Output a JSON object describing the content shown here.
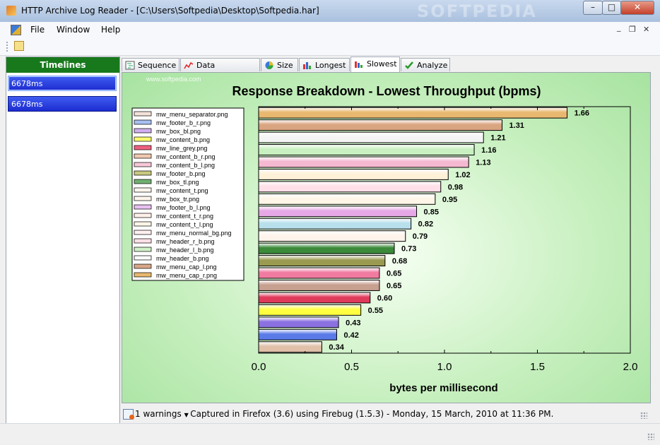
{
  "window": {
    "title": "HTTP Archive Log Reader - [C:\\Users\\Softpedia\\Desktop\\Softpedia.har]",
    "watermark": "SOFTPEDIA",
    "controls": {
      "minimize": "–",
      "maximize": "□",
      "close": "✕"
    }
  },
  "menu": {
    "file": "File",
    "window": "Window",
    "help": "Help",
    "mdi_minimize": "_",
    "mdi_restore": "❐",
    "mdi_close": "✕"
  },
  "sidebar": {
    "header": "Timelines",
    "items": [
      {
        "label": "6678ms"
      },
      {
        "label": "6678ms"
      }
    ]
  },
  "tabs": [
    {
      "label": "Sequence",
      "icon": "sequence-icon"
    },
    {
      "label": "Data Throughput",
      "icon": "line-chart-icon"
    },
    {
      "label": "Size",
      "icon": "pie-chart-icon"
    },
    {
      "label": "Longest",
      "icon": "bar-chart-icon"
    },
    {
      "label": "Slowest",
      "icon": "bar-chart-icon",
      "active": true
    },
    {
      "label": "Analyze",
      "icon": "checkmark-icon"
    }
  ],
  "status": {
    "warnings": "1 warnings",
    "message": "Captured in Firefox (3.6) using Firebug (1.5.3) - Monday, 15 March, 2010 at 11:36 PM."
  },
  "chart_data": {
    "type": "bar",
    "orientation": "horizontal",
    "title": "Response Breakdown - Lowest Throughput (bpms)",
    "xlabel": "bytes per millisecond",
    "xlim": [
      0,
      2.0
    ],
    "xticks": [
      "0.0",
      "0.5",
      "1.0",
      "1.5",
      "2.0"
    ],
    "watermark": "www.softpedia.com",
    "values": [
      1.66,
      1.31,
      1.21,
      1.16,
      1.13,
      1.02,
      0.98,
      0.95,
      0.85,
      0.82,
      0.79,
      0.73,
      0.68,
      0.65,
      0.65,
      0.6,
      0.55,
      0.43,
      0.42,
      0.34
    ],
    "bar_colors": [
      "#e8b870",
      "#d9a480",
      "#f4f4f4",
      "#c8f0c0",
      "#f4b8d0",
      "#fff0d8",
      "#ffe0e8",
      "#fff6e8",
      "#e6a8e6",
      "#b8e0ec",
      "#fff4ec",
      "#3a8a3a",
      "#9a9a50",
      "#f07aa0",
      "#c8a090",
      "#e03a5a",
      "#ffff40",
      "#8a70e0",
      "#5a7ae8",
      "#e0c0a8"
    ],
    "legend": [
      {
        "name": "mw_menu_separator.png",
        "color": "#f4e2d8"
      },
      {
        "name": "mw_footer_b_r.png",
        "color": "#a8c0f0"
      },
      {
        "name": "mw_box_bl.png",
        "color": "#d0b0f0"
      },
      {
        "name": "mw_content_b.png",
        "color": "#ffff70"
      },
      {
        "name": "mw_line_grey.png",
        "color": "#f06080"
      },
      {
        "name": "mw_content_b_r.png",
        "color": "#f0c8b0"
      },
      {
        "name": "mw_content_b_l.png",
        "color": "#f8c8d8"
      },
      {
        "name": "mw_footer_b.png",
        "color": "#c8c880"
      },
      {
        "name": "mw_box_tl.png",
        "color": "#70b070"
      },
      {
        "name": "mw_content_t.png",
        "color": "#fff6ee"
      },
      {
        "name": "mw_box_tr.png",
        "color": "#fff6ee"
      },
      {
        "name": "mw_footer_b_l.png",
        "color": "#e8c0f0"
      },
      {
        "name": "mw_content_t_r.png",
        "color": "#fff0e8"
      },
      {
        "name": "mw_content_t_l.png",
        "color": "#fff6e8"
      },
      {
        "name": "mw_menu_normal_bg.png",
        "color": "#fff0f0"
      },
      {
        "name": "mw_header_r_b.png",
        "color": "#ffe0e8"
      },
      {
        "name": "mw_header_l_b.png",
        "color": "#d0f0c8"
      },
      {
        "name": "mw_header_b.png",
        "color": "#fafafa"
      },
      {
        "name": "mw_menu_cap_l.png",
        "color": "#d8a888"
      },
      {
        "name": "mw_menu_cap_r.png",
        "color": "#e8b870"
      }
    ]
  }
}
